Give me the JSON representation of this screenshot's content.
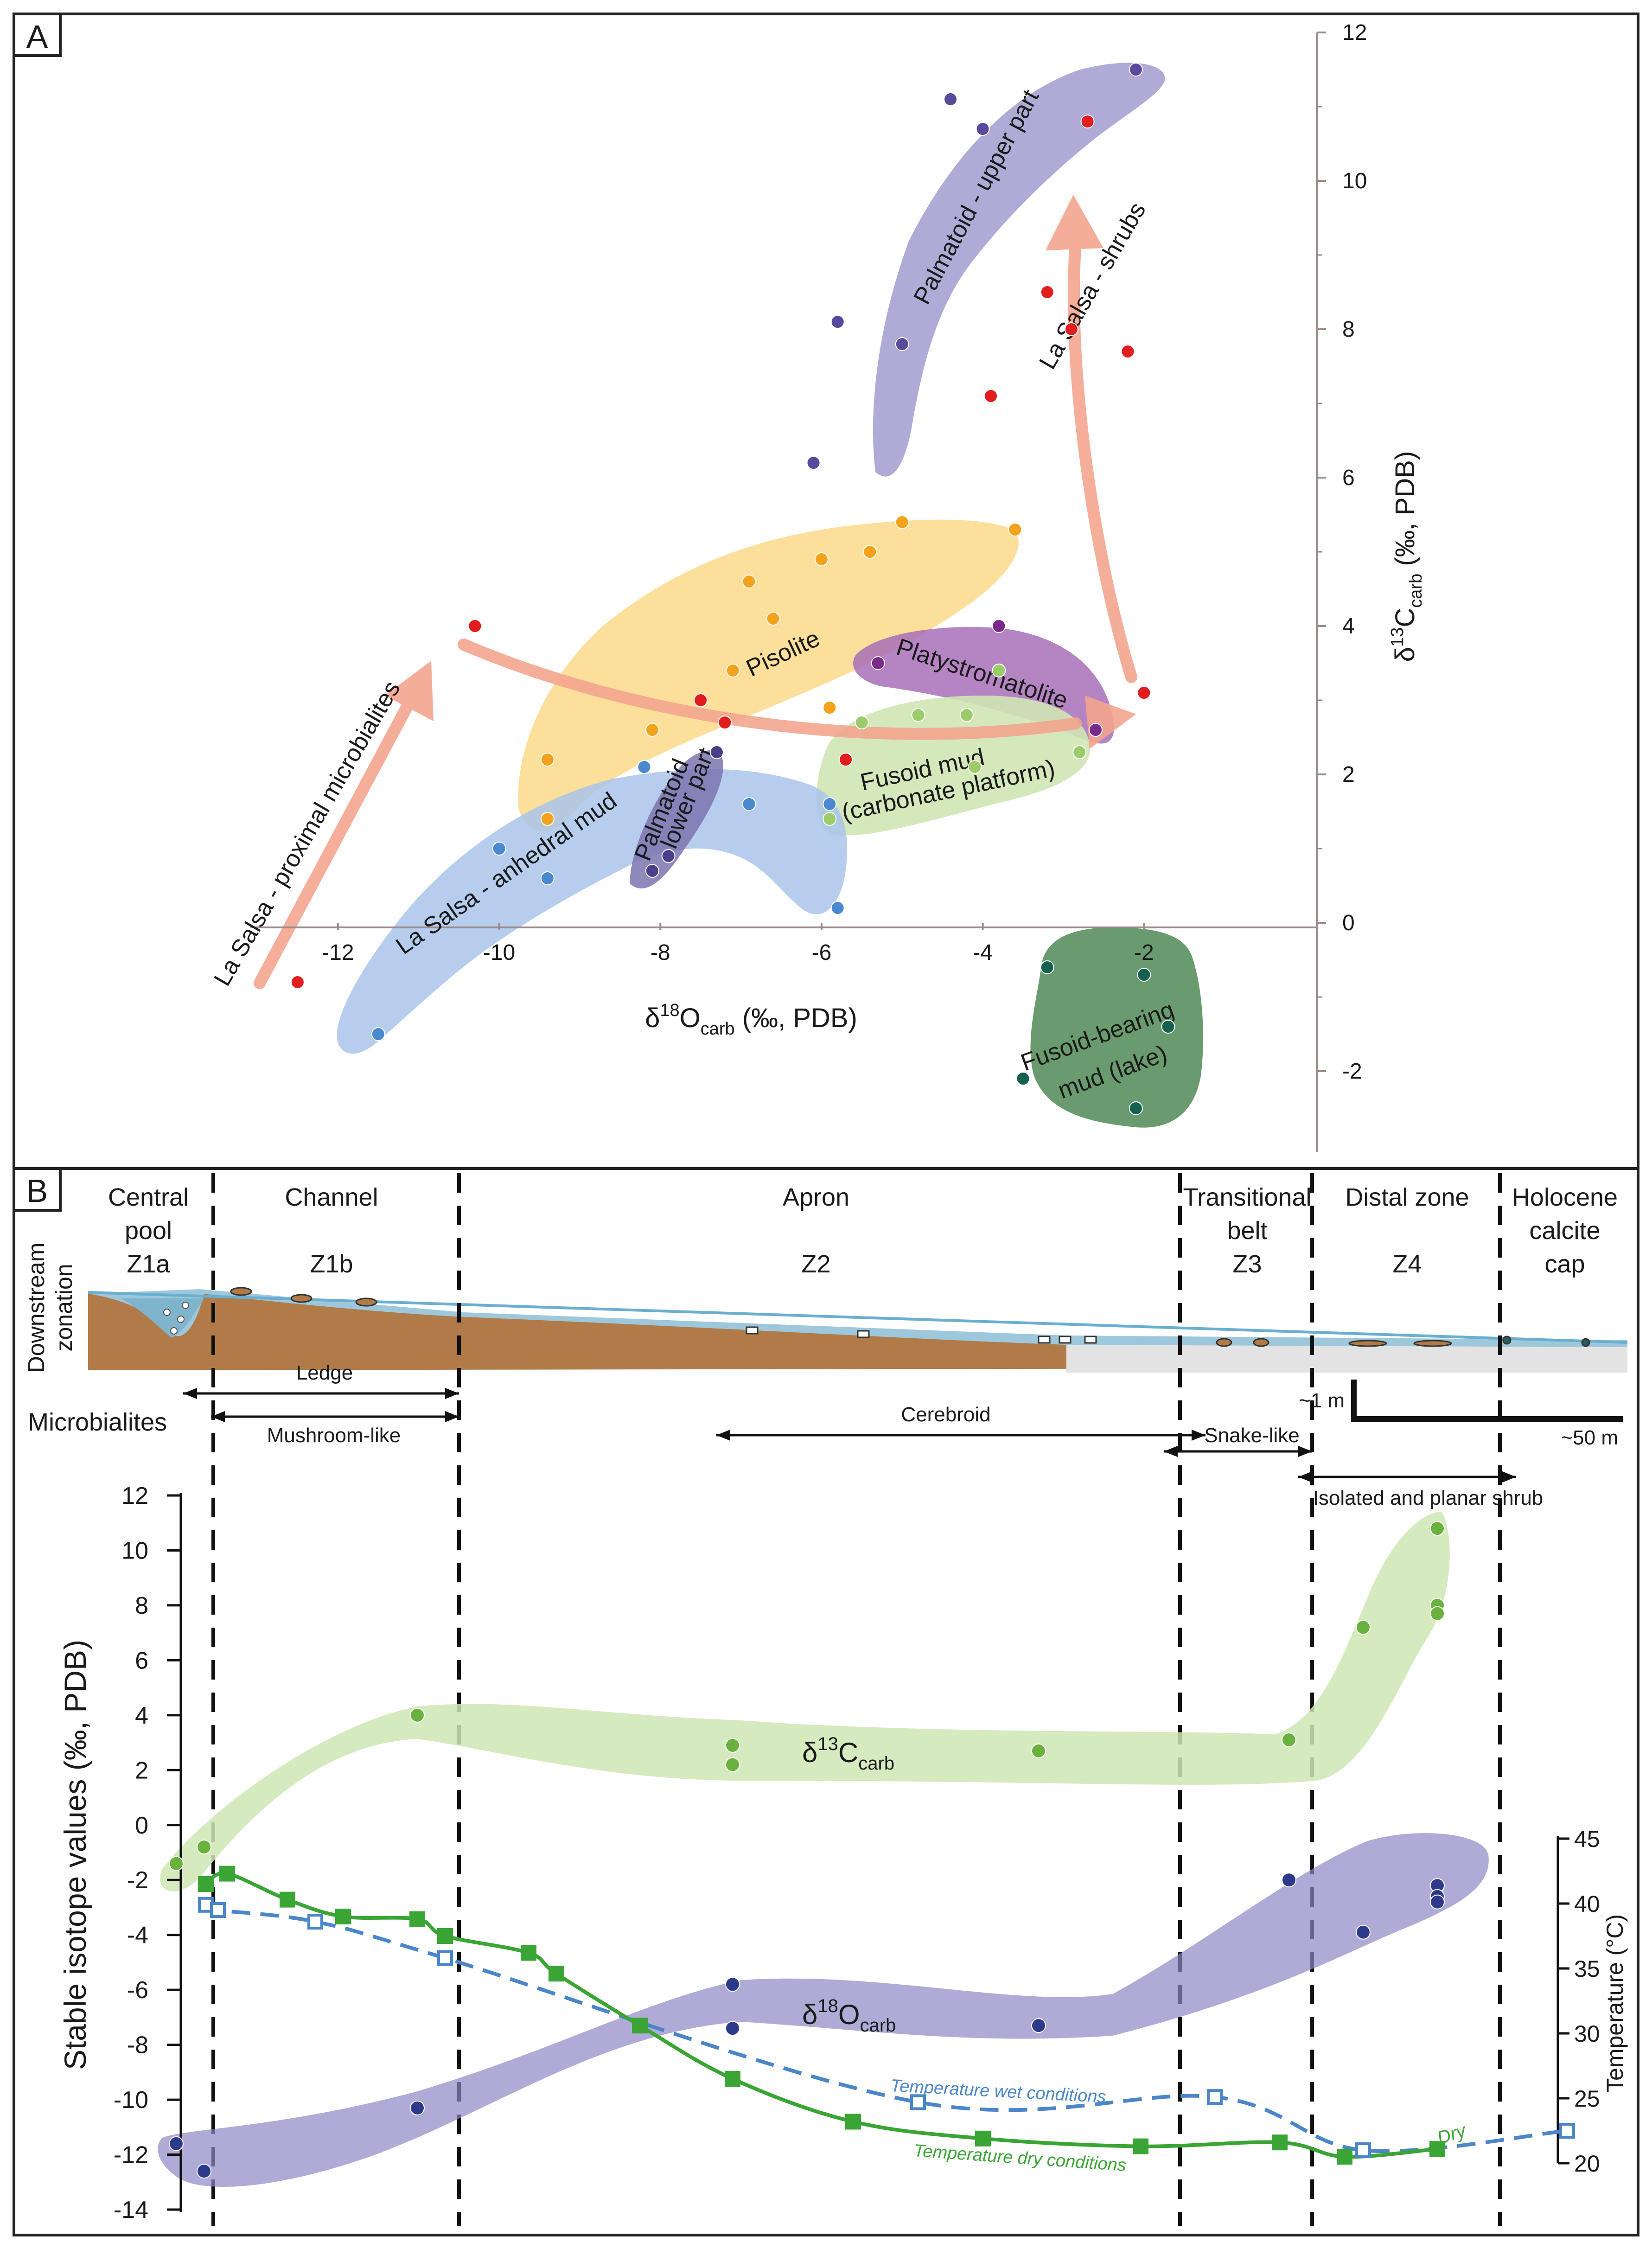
{
  "panels": [
    {
      "letter": "A"
    },
    {
      "letter": "B"
    }
  ],
  "chart_data": [
    {
      "type": "scatter",
      "panel": "A",
      "xlabel": "δ18Ocarb (‰, PDB)",
      "ylabel": "δ13Ccarb (‰, PDB)",
      "axis_label_parts": {
        "x": {
          "delta": "δ",
          "sup": "18",
          "el": "O",
          "sub": "carb",
          "rest": " (‰, PDB)"
        },
        "y": {
          "delta": "δ",
          "sup": "13",
          "el": "C",
          "sub": "carb",
          "rest": " (‰, PDB)"
        }
      },
      "xlim": [
        -13,
        0
      ],
      "ylim": [
        -3,
        12
      ],
      "xticks": [
        -12,
        -10,
        -8,
        -6,
        -4,
        -2
      ],
      "xtick_labels": [
        "-12",
        "-10",
        "-8",
        "-6",
        "-4",
        "-2"
      ],
      "yticks": [
        -2,
        0,
        2,
        4,
        6,
        8,
        10,
        12
      ],
      "ytick_labels": [
        "-2",
        "0",
        "2",
        "4",
        "6",
        "8",
        "10",
        "12"
      ],
      "groups": [
        {
          "name": "Palmatoid - upper part",
          "color": "#5a4a9e",
          "fill": "#8f87c4",
          "points": [
            [
              -6.1,
              6.2
            ],
            [
              -5.8,
              8.1
            ],
            [
              -5.0,
              7.8
            ],
            [
              -4.4,
              11.1
            ],
            [
              -4.0,
              10.7
            ],
            [
              -2.1,
              11.5
            ]
          ]
        },
        {
          "name": "Pisolite",
          "color": "#f2a31b",
          "fill": "#fbd98a",
          "points": [
            [
              -9.4,
              2.2
            ],
            [
              -9.4,
              1.4
            ],
            [
              -8.1,
              2.6
            ],
            [
              -7.1,
              3.4
            ],
            [
              -6.9,
              4.6
            ],
            [
              -6.6,
              4.1
            ],
            [
              -6.0,
              4.9
            ],
            [
              -5.9,
              2.9
            ],
            [
              -5.4,
              5.0
            ],
            [
              -5.0,
              5.4
            ],
            [
              -3.6,
              5.3
            ]
          ]
        },
        {
          "name": "Platystromatolite",
          "color": "#7a2a8c",
          "fill": "#a86fb8",
          "points": [
            [
              -5.3,
              3.5
            ],
            [
              -3.8,
              4.0
            ],
            [
              -2.6,
              2.6
            ]
          ]
        },
        {
          "name": "Fusoid mud (carbonate platform)",
          "color": "#9ccc6a",
          "fill": "#cfe6b5",
          "points": [
            [
              -5.9,
              1.4
            ],
            [
              -5.5,
              2.7
            ],
            [
              -4.8,
              2.8
            ],
            [
              -4.2,
              2.8
            ],
            [
              -4.1,
              2.1
            ],
            [
              -3.8,
              3.4
            ],
            [
              -2.8,
              2.3
            ]
          ]
        },
        {
          "name": "Palmatoid - lower part",
          "color": "#4a3f8a",
          "fill": "#7c74b0",
          "points": [
            [
              -8.1,
              0.7
            ],
            [
              -7.9,
              0.9
            ],
            [
              -7.3,
              2.3
            ]
          ]
        },
        {
          "name": "La Salsa - anhedral mud",
          "color": "#4a88d0",
          "fill": "#a9c4ea",
          "points": [
            [
              -11.5,
              -1.5
            ],
            [
              -10.0,
              1.0
            ],
            [
              -9.4,
              0.6
            ],
            [
              -8.2,
              2.1
            ],
            [
              -6.9,
              1.6
            ],
            [
              -5.9,
              1.6
            ],
            [
              -5.8,
              0.2
            ]
          ]
        },
        {
          "name": "Fusoid-bearing mud (lake)",
          "color": "#15604f",
          "fill": "#4f8a55",
          "points": [
            [
              -3.2,
              -0.6
            ],
            [
              -3.5,
              -2.1
            ],
            [
              -2.0,
              -0.7
            ],
            [
              -1.7,
              -1.4
            ],
            [
              -2.1,
              -2.5
            ]
          ]
        },
        {
          "name": "La Salsa - proximal microbialites / shrubs",
          "color": "#e21d1d",
          "fill": "#f3a58e",
          "points": [
            [
              -12.5,
              -0.8
            ],
            [
              -10.3,
              4.0
            ],
            [
              -7.5,
              3.0
            ],
            [
              -7.2,
              2.7
            ],
            [
              -5.7,
              2.2
            ],
            [
              -3.9,
              7.1
            ],
            [
              -3.2,
              8.5
            ],
            [
              -2.9,
              8.0
            ],
            [
              -2.7,
              10.8
            ],
            [
              -2.2,
              7.7
            ],
            [
              -2.0,
              3.1
            ]
          ]
        }
      ],
      "group_labels": [
        "Palmatoid - upper part",
        "La Salsa - shrubs",
        "Pisolite",
        "Platystromatolite",
        "Fusoid mud",
        "(carbonate platform)",
        "Palmatoid",
        "- lower part",
        "La Salsa - anhedral mud",
        "La Salsa - proximal microbialites",
        "Fusoid-bearing",
        "mud (lake)"
      ]
    },
    {
      "type": "line",
      "panel": "B",
      "ylabel": "Stable isotope values (‰, PDB)",
      "y2label": "Temperature (°C)",
      "ylim": [
        -14,
        12
      ],
      "yticks": [
        -14,
        -12,
        -10,
        -8,
        -6,
        -4,
        -2,
        0,
        2,
        4,
        6,
        8,
        10,
        12
      ],
      "ytick_labels": [
        "-14",
        "-12",
        "-10",
        "-8",
        "-6",
        "-4",
        "-2",
        "0",
        "2",
        "4",
        "6",
        "8",
        "10",
        "12"
      ],
      "y2lim": [
        20,
        45
      ],
      "y2ticks": [
        20,
        25,
        30,
        35,
        40,
        45
      ],
      "y2tick_labels": [
        "20",
        "25",
        "30",
        "35",
        "40",
        "45"
      ],
      "xlabel": "Downstream zonation",
      "xlabel_lines": [
        "Downstream",
        "zonation"
      ],
      "zones": [
        {
          "lines": [
            "Central",
            "pool",
            "Z1a"
          ]
        },
        {
          "lines": [
            "Channel",
            "",
            "Z1b"
          ]
        },
        {
          "lines": [
            "Apron",
            "",
            "Z2"
          ]
        },
        {
          "lines": [
            "Transitional",
            "belt",
            "Z3"
          ]
        },
        {
          "lines": [
            "Distal zone",
            "",
            "Z4"
          ]
        },
        {
          "lines": [
            "Holocene",
            "calcite",
            "cap"
          ]
        }
      ],
      "microbialites_title": "Microbialites",
      "microbialite_ranges": [
        "Ledge",
        "Mushroom-like",
        "Cerebroid",
        "Snake-like",
        "Isolated and planar shrub"
      ],
      "scale_labels": [
        "~1 m",
        "~50 m"
      ],
      "series": [
        {
          "name": "δ13Ccarb",
          "label_parts": {
            "delta": "δ",
            "sup": "13",
            "el": "C",
            "sub": "carb"
          },
          "color": "#6ab23e",
          "points": [
            [
              0.0,
              -1.4
            ],
            [
              0.3,
              -0.8
            ],
            [
              2.6,
              4.0
            ],
            [
              6.0,
              2.9
            ],
            [
              6.0,
              2.2
            ],
            [
              9.3,
              2.7
            ],
            [
              12.0,
              3.1
            ],
            [
              12.8,
              7.2
            ],
            [
              13.6,
              10.8
            ],
            [
              13.6,
              8.0
            ],
            [
              13.6,
              7.7
            ]
          ]
        },
        {
          "name": "δ18Ocarb",
          "label_parts": {
            "delta": "δ",
            "sup": "18",
            "el": "O",
            "sub": "carb"
          },
          "color": "#2d3a8c",
          "points": [
            [
              0.0,
              -11.6
            ],
            [
              0.3,
              -12.6
            ],
            [
              2.6,
              -10.3
            ],
            [
              6.0,
              -5.8
            ],
            [
              6.0,
              -7.4
            ],
            [
              9.3,
              -7.3
            ],
            [
              12.0,
              -2.0
            ],
            [
              12.8,
              -3.9
            ],
            [
              13.6,
              -2.2
            ],
            [
              13.6,
              -2.6
            ],
            [
              13.6,
              -2.8
            ]
          ]
        },
        {
          "name": "Temperature dry conditions",
          "short_label": "Dry",
          "color": "#3aa534",
          "axis": "temperature",
          "points": [
            [
              0.32,
              41.5
            ],
            [
              0.55,
              42.3
            ],
            [
              1.2,
              40.3
            ],
            [
              1.8,
              39.0
            ],
            [
              2.6,
              38.8
            ],
            [
              2.9,
              37.5
            ],
            [
              3.8,
              36.2
            ],
            [
              4.1,
              34.6
            ],
            [
              5.0,
              30.6
            ],
            [
              6.0,
              26.5
            ],
            [
              7.3,
              23.2
            ],
            [
              8.7,
              21.9
            ],
            [
              10.4,
              21.3
            ],
            [
              11.9,
              21.6
            ],
            [
              12.6,
              20.5
            ],
            [
              13.6,
              21.1
            ]
          ]
        },
        {
          "name": "Temperature wet conditions",
          "color": "#4a86c8",
          "axis": "temperature",
          "points": [
            [
              0.32,
              39.9
            ],
            [
              0.45,
              39.5
            ],
            [
              1.5,
              38.6
            ],
            [
              2.9,
              35.8
            ],
            [
              8.0,
              24.7
            ],
            [
              11.2,
              25.1
            ],
            [
              12.8,
              21.0
            ],
            [
              15.0,
              22.5
            ]
          ]
        }
      ]
    }
  ]
}
